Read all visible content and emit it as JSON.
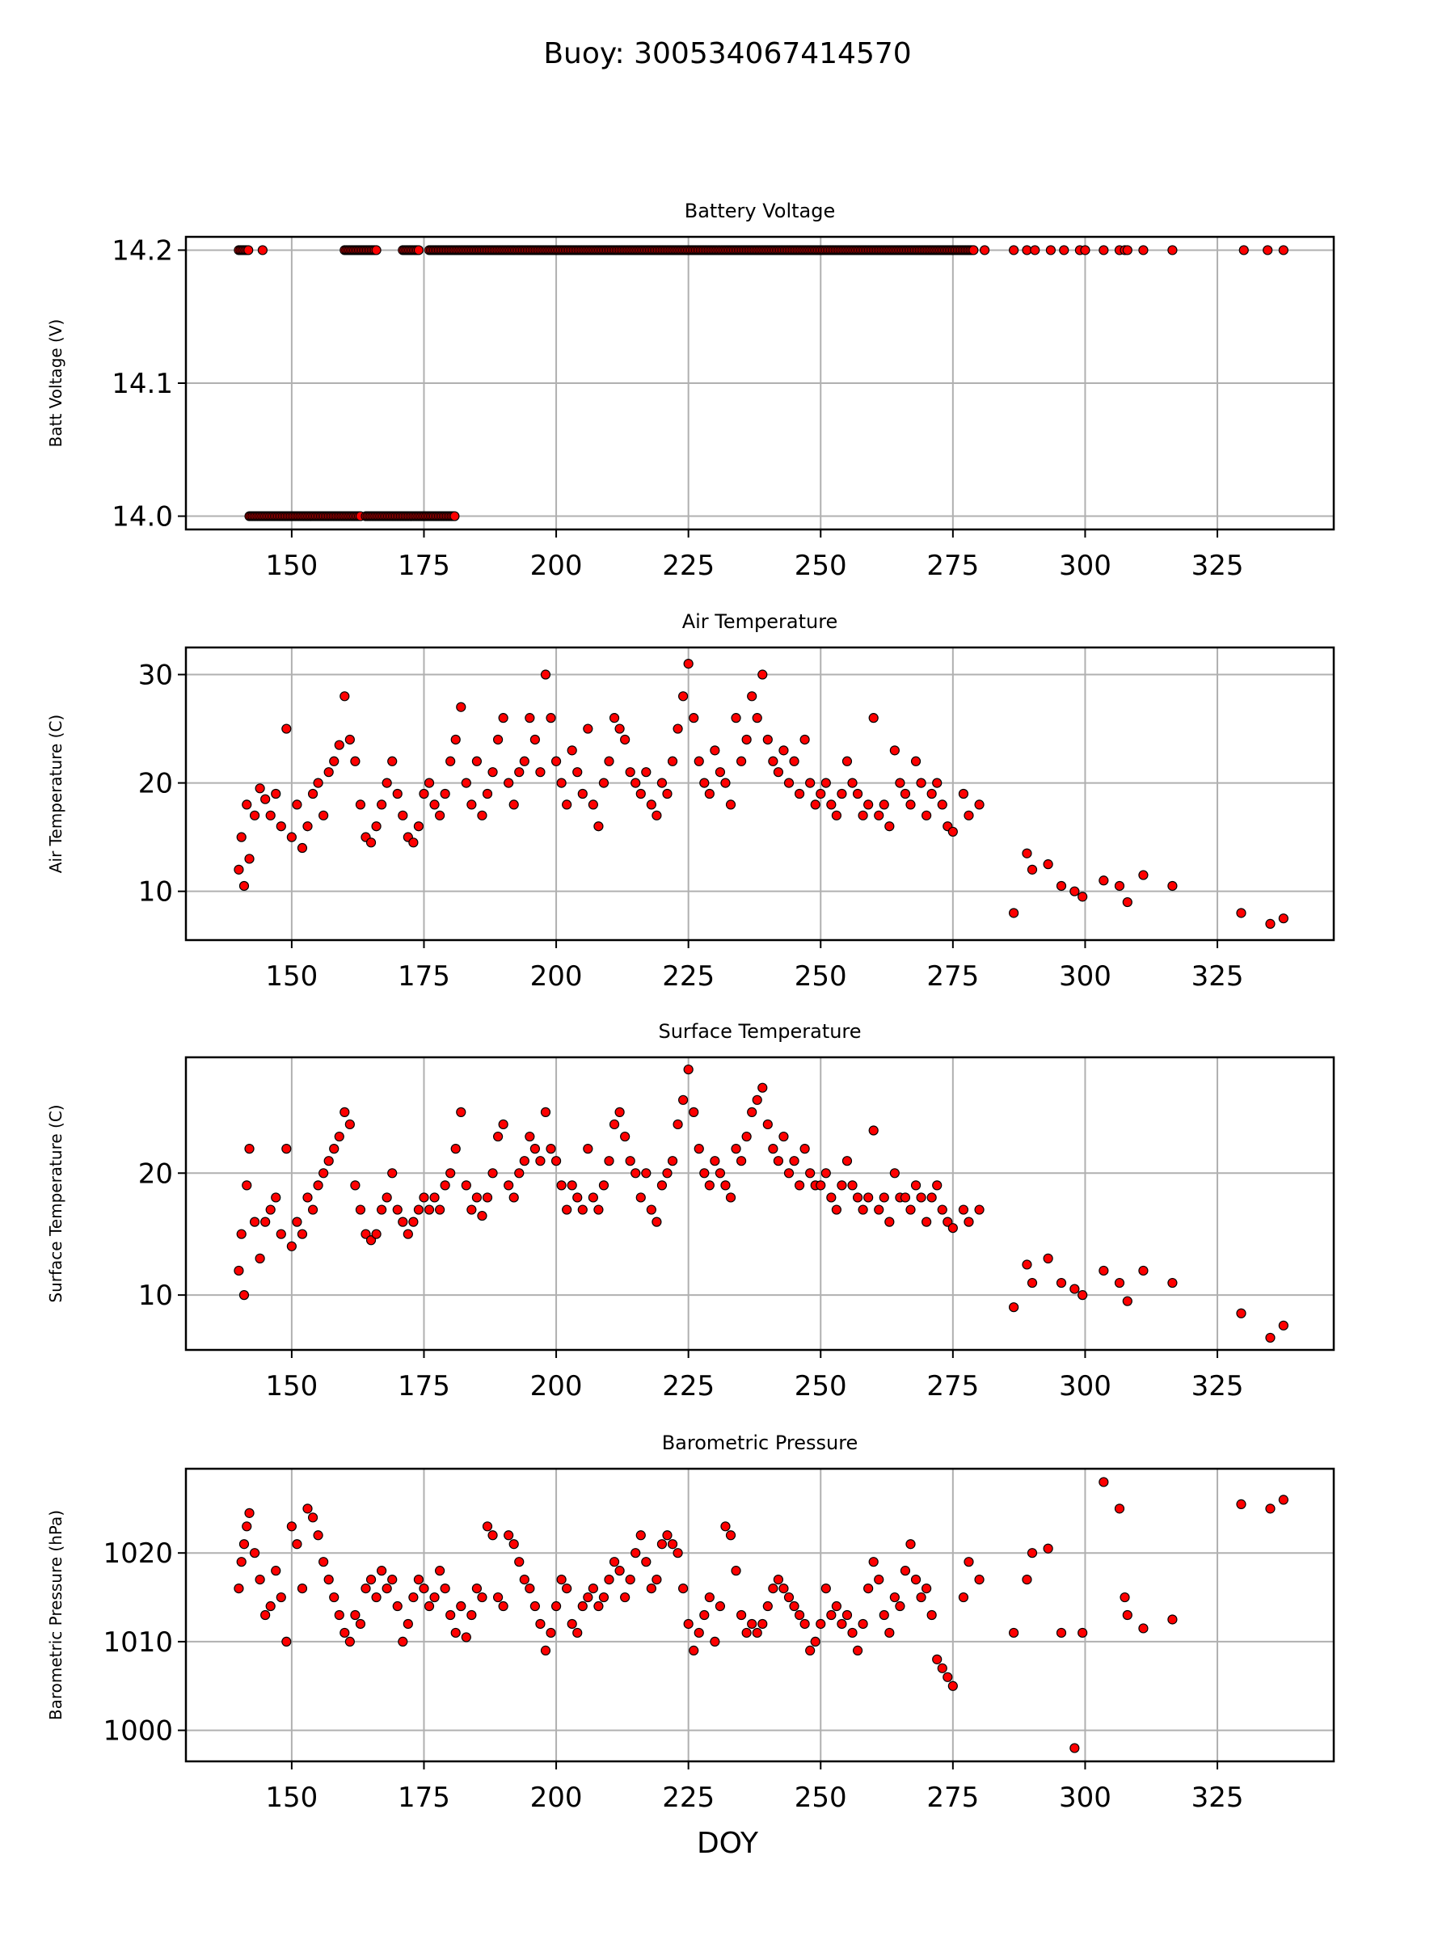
{
  "figure": {
    "title": "Buoy: 300534067414570",
    "xlabel": "DOY",
    "marker_color": "#ff0000",
    "marker_edge": "#000000"
  },
  "chart_data": [
    {
      "type": "scatter",
      "title": "Battery Voltage",
      "xlabel": "",
      "ylabel": "Batt Voltage (V)",
      "xlim": [
        130,
        347
      ],
      "ylim": [
        13.99,
        14.21
      ],
      "xticks": [
        150,
        175,
        200,
        225,
        250,
        275,
        300,
        325
      ],
      "yticks": [
        14.0,
        14.1,
        14.2
      ],
      "ytick_labels": [
        "14.0",
        "14.1",
        "14.2"
      ],
      "grid": true,
      "series": [
        {
          "segments": [
            [
              140,
              142,
              14.2,
              0.3
            ],
            [
              160,
              166,
              14.2,
              0.3
            ],
            [
              171,
              174,
              14.2,
              0.3
            ],
            [
              176,
              279,
              14.2,
              0.3
            ],
            [
              142,
              163,
              14.0,
              0.3
            ],
            [
              164,
              181,
              14.0,
              0.3
            ]
          ],
          "x": [
            144.5,
            281,
            286.5,
            289,
            290.5,
            293.5,
            296,
            299,
            300,
            303.5,
            306.5,
            307.5,
            308,
            311,
            316.5,
            330,
            334.5,
            337.5
          ],
          "y": [
            14.2,
            14.2,
            14.2,
            14.2,
            14.2,
            14.2,
            14.2,
            14.2,
            14.2,
            14.2,
            14.2,
            14.2,
            14.2,
            14.2,
            14.2,
            14.2,
            14.2,
            14.2
          ]
        }
      ]
    },
    {
      "type": "scatter",
      "title": "Air Temperature",
      "xlabel": "",
      "ylabel": "Air Temperature (C)",
      "xlim": [
        130,
        347
      ],
      "ylim": [
        5.5,
        32.5
      ],
      "xticks": [
        150,
        175,
        200,
        225,
        250,
        275,
        300,
        325
      ],
      "yticks": [
        10,
        20,
        30
      ],
      "ytick_labels": [
        "10",
        "20",
        "30"
      ],
      "grid": true,
      "series": [
        {
          "x": [
            140,
            140.5,
            141,
            141.5,
            142,
            143,
            144,
            145,
            146,
            147,
            148,
            149,
            150,
            151,
            152,
            153,
            154,
            155,
            156,
            157,
            158,
            159,
            160,
            161,
            162,
            163,
            164,
            165,
            166,
            167,
            168,
            169,
            170,
            171,
            172,
            173,
            174,
            175,
            176,
            177,
            178,
            179,
            180,
            181,
            182,
            183,
            184,
            185,
            186,
            187,
            188,
            189,
            190,
            191,
            192,
            193,
            194,
            195,
            196,
            197,
            198,
            199,
            200,
            201,
            202,
            203,
            204,
            205,
            206,
            207,
            208,
            209,
            210,
            211,
            212,
            213,
            214,
            215,
            216,
            217,
            218,
            219,
            220,
            221,
            222,
            223,
            224,
            225,
            226,
            227,
            228,
            229,
            230,
            231,
            232,
            233,
            234,
            235,
            236,
            237,
            238,
            239,
            240,
            241,
            242,
            243,
            244,
            245,
            246,
            247,
            248,
            249,
            250,
            251,
            252,
            253,
            254,
            255,
            256,
            257,
            258,
            259,
            260,
            261,
            262,
            263,
            264,
            265,
            266,
            267,
            268,
            269,
            270,
            271,
            272,
            273,
            274,
            275,
            277,
            278,
            280,
            286.5,
            289,
            290,
            293,
            295.5,
            298,
            299.5,
            303.5,
            306.5,
            308,
            311,
            316.5,
            329.5,
            335,
            337.5
          ],
          "y": [
            12,
            15,
            10.5,
            18,
            13,
            17,
            19.5,
            18.5,
            17,
            19,
            16,
            25,
            15,
            18,
            14,
            16,
            19,
            20,
            17,
            21,
            22,
            23.5,
            28,
            24,
            22,
            18,
            15,
            14.5,
            16,
            18,
            20,
            22,
            19,
            17,
            15,
            14.5,
            16,
            19,
            20,
            18,
            17,
            19,
            22,
            24,
            27,
            20,
            18,
            22,
            17,
            19,
            21,
            24,
            26,
            20,
            18,
            21,
            22,
            26,
            24,
            21,
            30,
            26,
            22,
            20,
            18,
            23,
            21,
            19,
            25,
            18,
            16,
            20,
            22,
            26,
            25,
            24,
            21,
            20,
            19,
            21,
            18,
            17,
            20,
            19,
            22,
            25,
            28,
            31,
            26,
            22,
            20,
            19,
            23,
            21,
            20,
            18,
            26,
            22,
            24,
            28,
            26,
            30,
            24,
            22,
            21,
            23,
            20,
            22,
            19,
            24,
            20,
            18,
            19,
            20,
            18,
            17,
            19,
            22,
            20,
            19,
            17,
            18,
            26,
            17,
            18,
            16,
            23,
            20,
            19,
            18,
            22,
            20,
            17,
            19,
            20,
            18,
            16,
            15.5,
            19,
            17,
            18,
            8,
            13.5,
            12,
            12.5,
            10.5,
            10,
            9.5,
            11,
            10.5,
            9,
            11.5,
            10.5,
            8,
            7,
            7.5
          ]
        }
      ]
    },
    {
      "type": "scatter",
      "title": "Surface Temperature",
      "xlabel": "",
      "ylabel": "Surface Temperature (C)",
      "xlim": [
        130,
        347
      ],
      "ylim": [
        5.5,
        29.5
      ],
      "xticks": [
        150,
        175,
        200,
        225,
        250,
        275,
        300,
        325
      ],
      "yticks": [
        10,
        20
      ],
      "ytick_labels": [
        "10",
        "20"
      ],
      "grid": true,
      "series": [
        {
          "x": [
            140,
            140.5,
            141,
            141.5,
            142,
            143,
            144,
            145,
            146,
            147,
            148,
            149,
            150,
            151,
            152,
            153,
            154,
            155,
            156,
            157,
            158,
            159,
            160,
            161,
            162,
            163,
            164,
            165,
            166,
            167,
            168,
            169,
            170,
            171,
            172,
            173,
            174,
            175,
            176,
            177,
            178,
            179,
            180,
            181,
            182,
            183,
            184,
            185,
            186,
            187,
            188,
            189,
            190,
            191,
            192,
            193,
            194,
            195,
            196,
            197,
            198,
            199,
            200,
            201,
            202,
            203,
            204,
            205,
            206,
            207,
            208,
            209,
            210,
            211,
            212,
            213,
            214,
            215,
            216,
            217,
            218,
            219,
            220,
            221,
            222,
            223,
            224,
            225,
            226,
            227,
            228,
            229,
            230,
            231,
            232,
            233,
            234,
            235,
            236,
            237,
            238,
            239,
            240,
            241,
            242,
            243,
            244,
            245,
            246,
            247,
            248,
            249,
            250,
            251,
            252,
            253,
            254,
            255,
            256,
            257,
            258,
            259,
            260,
            261,
            262,
            263,
            264,
            265,
            266,
            267,
            268,
            269,
            270,
            271,
            272,
            273,
            274,
            275,
            277,
            278,
            280,
            286.5,
            289,
            290,
            293,
            295.5,
            298,
            299.5,
            303.5,
            306.5,
            308,
            311,
            316.5,
            329.5,
            335,
            337.5
          ],
          "y": [
            12,
            15,
            10,
            19,
            22,
            16,
            13,
            16,
            17,
            18,
            15,
            22,
            14,
            16,
            15,
            18,
            17,
            19,
            20,
            21,
            22,
            23,
            25,
            24,
            19,
            17,
            15,
            14.5,
            15,
            17,
            18,
            20,
            17,
            16,
            15,
            16,
            17,
            18,
            17,
            18,
            17,
            19,
            20,
            22,
            25,
            19,
            17,
            18,
            16.5,
            18,
            20,
            23,
            24,
            19,
            18,
            20,
            21,
            23,
            22,
            21,
            25,
            22,
            21,
            19,
            17,
            19,
            18,
            17,
            22,
            18,
            17,
            19,
            21,
            24,
            25,
            23,
            21,
            20,
            18,
            20,
            17,
            16,
            19,
            20,
            21,
            24,
            26,
            28.5,
            25,
            22,
            20,
            19,
            21,
            20,
            19,
            18,
            22,
            21,
            23,
            25,
            26,
            27,
            24,
            22,
            21,
            23,
            20,
            21,
            19,
            22,
            20,
            19,
            19,
            20,
            18,
            17,
            19,
            21,
            19,
            18,
            17,
            18,
            23.5,
            17,
            18,
            16,
            20,
            18,
            18,
            17,
            19,
            18,
            16,
            18,
            19,
            17,
            16,
            15.5,
            17,
            16,
            17,
            9,
            12.5,
            11,
            13,
            11,
            10.5,
            10,
            12,
            11,
            9.5,
            12,
            11,
            8.5,
            6.5,
            7.5
          ]
        }
      ]
    },
    {
      "type": "scatter",
      "title": "Barometric Pressure",
      "xlabel": "DOY",
      "ylabel": "Barometric Pressure (hPa)",
      "xlim": [
        130,
        347
      ],
      "ylim": [
        996.5,
        1029.5
      ],
      "xticks": [
        150,
        175,
        200,
        225,
        250,
        275,
        300,
        325
      ],
      "yticks": [
        1000,
        1010,
        1020
      ],
      "ytick_labels": [
        "1000",
        "1010",
        "1020"
      ],
      "grid": true,
      "series": [
        {
          "x": [
            140,
            140.5,
            141,
            141.5,
            142,
            143,
            144,
            145,
            146,
            147,
            148,
            149,
            150,
            151,
            152,
            153,
            154,
            155,
            156,
            157,
            158,
            159,
            160,
            161,
            162,
            163,
            164,
            165,
            166,
            167,
            168,
            169,
            170,
            171,
            172,
            173,
            174,
            175,
            176,
            177,
            178,
            179,
            180,
            181,
            182,
            183,
            184,
            185,
            186,
            187,
            188,
            189,
            190,
            191,
            192,
            193,
            194,
            195,
            196,
            197,
            198,
            199,
            200,
            201,
            202,
            203,
            204,
            205,
            206,
            207,
            208,
            209,
            210,
            211,
            212,
            213,
            214,
            215,
            216,
            217,
            218,
            219,
            220,
            221,
            222,
            223,
            224,
            225,
            226,
            227,
            228,
            229,
            230,
            231,
            232,
            233,
            234,
            235,
            236,
            237,
            238,
            239,
            240,
            241,
            242,
            243,
            244,
            245,
            246,
            247,
            248,
            249,
            250,
            251,
            252,
            253,
            254,
            255,
            256,
            257,
            258,
            259,
            260,
            261,
            262,
            263,
            264,
            265,
            266,
            267,
            268,
            269,
            270,
            271,
            272,
            273,
            274,
            275,
            277,
            278,
            280,
            286.5,
            289,
            290,
            293,
            295.5,
            298,
            299.5,
            303.5,
            306.5,
            307.5,
            308,
            311,
            316.5,
            329.5,
            335,
            337.5
          ],
          "y": [
            1016,
            1019,
            1021,
            1023,
            1024.5,
            1020,
            1017,
            1013,
            1014,
            1018,
            1015,
            1010,
            1023,
            1021,
            1016,
            1025,
            1024,
            1022,
            1019,
            1017,
            1015,
            1013,
            1011,
            1010,
            1013,
            1012,
            1016,
            1017,
            1015,
            1018,
            1016,
            1017,
            1014,
            1010,
            1012,
            1015,
            1017,
            1016,
            1014,
            1015,
            1018,
            1016,
            1013,
            1011,
            1014,
            1010.5,
            1013,
            1016,
            1015,
            1023,
            1022,
            1015,
            1014,
            1022,
            1021,
            1019,
            1017,
            1016,
            1014,
            1012,
            1009,
            1011,
            1014,
            1017,
            1016,
            1012,
            1011,
            1014,
            1015,
            1016,
            1014,
            1015,
            1017,
            1019,
            1018,
            1015,
            1017,
            1020,
            1022,
            1019,
            1016,
            1017,
            1021,
            1022,
            1021,
            1020,
            1016,
            1012,
            1009,
            1011,
            1013,
            1015,
            1010,
            1014,
            1023,
            1022,
            1018,
            1013,
            1011,
            1012,
            1011,
            1012,
            1014,
            1016,
            1017,
            1016,
            1015,
            1014,
            1013,
            1012,
            1009,
            1010,
            1012,
            1016,
            1013,
            1014,
            1012,
            1013,
            1011,
            1009,
            1012,
            1016,
            1019,
            1017,
            1013,
            1011,
            1015,
            1014,
            1018,
            1021,
            1017,
            1015,
            1016,
            1013,
            1008,
            1007,
            1006,
            1005,
            1015,
            1019,
            1017,
            1011,
            1017,
            1020,
            1020.5,
            1011,
            998,
            1011,
            1028,
            1025,
            1015,
            1013,
            1011.5,
            1012.5,
            1025.5,
            1025,
            1026
          ]
        }
      ]
    }
  ]
}
